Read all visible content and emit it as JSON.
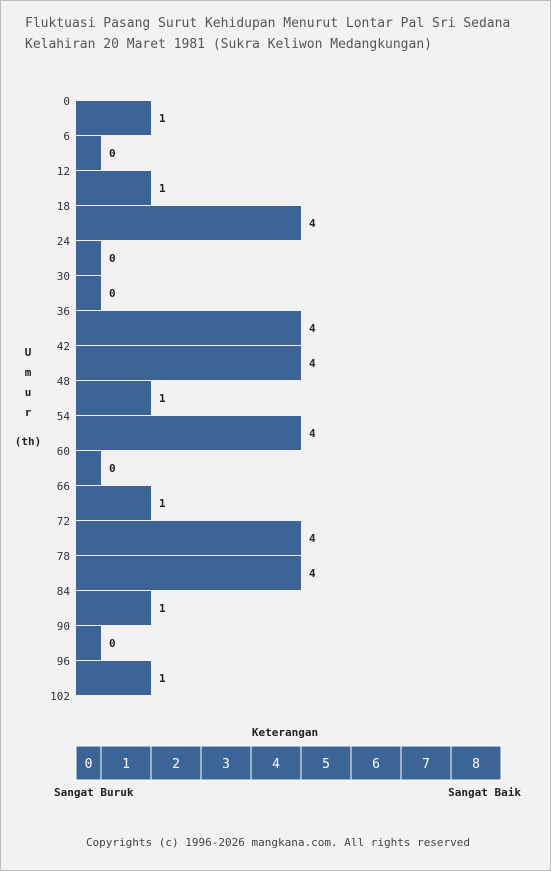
{
  "title_lines": [
    "Fluktuasi Pasang Surut Kehidupan Menurut Lontar Pal Sri Sedana",
    "Kelahiran 20 Maret 1981 (Sukra Keliwon Medangkungan)"
  ],
  "chart_data": {
    "type": "bar",
    "orientation": "horizontal",
    "title": "Fluktuasi Pasang Surut Kehidupan Menurut Lontar Pal Sri Sedana Kelahiran 20 Maret 1981 (Sukra Keliwon Medangkungan)",
    "ylabel_chars": [
      "U",
      "m",
      "u",
      "r"
    ],
    "ylabel_unit": "(th)",
    "y_ticks": [
      0,
      6,
      12,
      18,
      24,
      30,
      36,
      42,
      48,
      54,
      60,
      66,
      72,
      78,
      84,
      90,
      96,
      102
    ],
    "values": [
      1,
      0,
      1,
      4,
      0,
      0,
      4,
      4,
      1,
      4,
      0,
      1,
      4,
      4,
      1,
      0,
      1
    ],
    "xlim": [
      0,
      8
    ],
    "bar_color": "#3d6497"
  },
  "legend": {
    "title": "Keterangan",
    "scale": [
      "0",
      "1",
      "2",
      "3",
      "4",
      "5",
      "6",
      "7",
      "8"
    ],
    "low_label": "Sangat Buruk",
    "high_label": "Sangat Baik"
  },
  "footer": "Copyrights (c) 1996-2026 mangkana.com. All rights reserved"
}
